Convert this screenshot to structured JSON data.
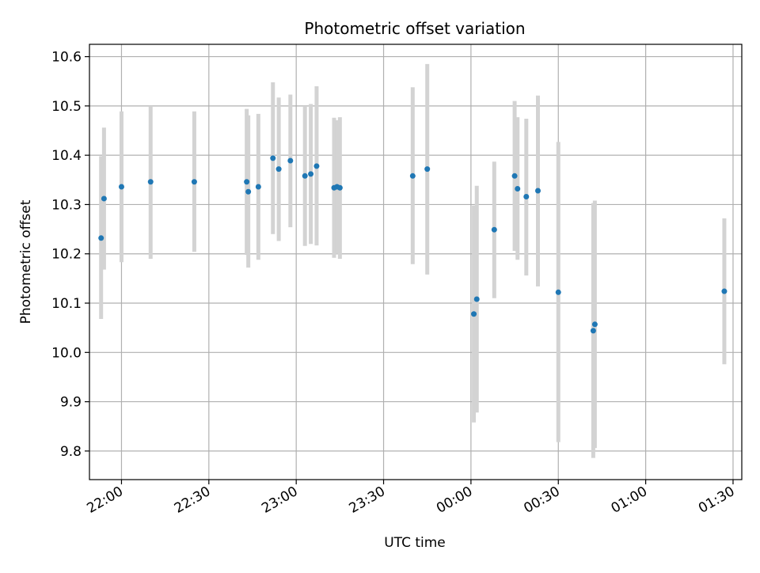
{
  "chart_data": {
    "type": "scatter",
    "title": "Photometric offset variation",
    "xlabel": "UTC time",
    "ylabel": "Photometric offset",
    "x_unit": "UTC time (HH:MM)",
    "xlim": [
      "21:49",
      "01:33"
    ],
    "ylim": [
      9.742,
      10.625
    ],
    "x_ticks": [
      "22:00",
      "22:30",
      "23:00",
      "23:30",
      "00:00",
      "00:30",
      "01:00",
      "01:30"
    ],
    "y_ticks": [
      "9.8",
      "9.9",
      "10.0",
      "10.1",
      "10.2",
      "10.3",
      "10.4",
      "10.5",
      "10.6"
    ],
    "grid": true,
    "legend": "none",
    "colors": {
      "point": "#1f77b4",
      "errorbar": "#d3d3d3",
      "grid": "#b0b0b0"
    },
    "points": [
      {
        "t": "21:53",
        "y": 10.232,
        "low": 10.068,
        "high": 10.398
      },
      {
        "t": "21:54",
        "y": 10.312,
        "low": 10.168,
        "high": 10.456
      },
      {
        "t": "22:00",
        "y": 10.336,
        "low": 10.183,
        "high": 10.489
      },
      {
        "t": "22:10",
        "y": 10.346,
        "low": 10.19,
        "high": 10.5
      },
      {
        "t": "22:25",
        "y": 10.346,
        "low": 10.204,
        "high": 10.489
      },
      {
        "t": "22:43",
        "y": 10.346,
        "low": 10.198,
        "high": 10.494
      },
      {
        "t": "22:43",
        "y": 10.326,
        "low": 10.172,
        "high": 10.481
      },
      {
        "t": "22:47",
        "y": 10.336,
        "low": 10.188,
        "high": 10.484
      },
      {
        "t": "22:52",
        "y": 10.394,
        "low": 10.24,
        "high": 10.548
      },
      {
        "t": "22:54",
        "y": 10.372,
        "low": 10.226,
        "high": 10.517
      },
      {
        "t": "22:58",
        "y": 10.389,
        "low": 10.254,
        "high": 10.523
      },
      {
        "t": "23:03",
        "y": 10.358,
        "low": 10.216,
        "high": 10.5
      },
      {
        "t": "23:05",
        "y": 10.362,
        "low": 10.22,
        "high": 10.504
      },
      {
        "t": "23:07",
        "y": 10.378,
        "low": 10.217,
        "high": 10.54
      },
      {
        "t": "23:13",
        "y": 10.334,
        "low": 10.192,
        "high": 10.476
      },
      {
        "t": "23:14",
        "y": 10.336,
        "low": 10.2,
        "high": 10.471
      },
      {
        "t": "23:15",
        "y": 10.334,
        "low": 10.19,
        "high": 10.477
      },
      {
        "t": "23:40",
        "y": 10.358,
        "low": 10.179,
        "high": 10.538
      },
      {
        "t": "23:45",
        "y": 10.372,
        "low": 10.158,
        "high": 10.585
      },
      {
        "t": "00:01",
        "y": 10.078,
        "low": 9.858,
        "high": 10.298
      },
      {
        "t": "00:02",
        "y": 10.108,
        "low": 9.878,
        "high": 10.338
      },
      {
        "t": "00:08",
        "y": 10.249,
        "low": 10.11,
        "high": 10.387
      },
      {
        "t": "00:15",
        "y": 10.358,
        "low": 10.206,
        "high": 10.51
      },
      {
        "t": "00:16",
        "y": 10.332,
        "low": 10.188,
        "high": 10.477
      },
      {
        "t": "00:19",
        "y": 10.316,
        "low": 10.156,
        "high": 10.474
      },
      {
        "t": "00:23",
        "y": 10.328,
        "low": 10.134,
        "high": 10.521
      },
      {
        "t": "00:30",
        "y": 10.122,
        "low": 9.818,
        "high": 10.427
      },
      {
        "t": "00:42",
        "y": 10.044,
        "low": 9.786,
        "high": 10.303
      },
      {
        "t": "00:42",
        "y": 10.057,
        "low": 9.806,
        "high": 10.308
      },
      {
        "t": "01:27",
        "y": 10.124,
        "low": 9.976,
        "high": 10.272
      }
    ]
  }
}
